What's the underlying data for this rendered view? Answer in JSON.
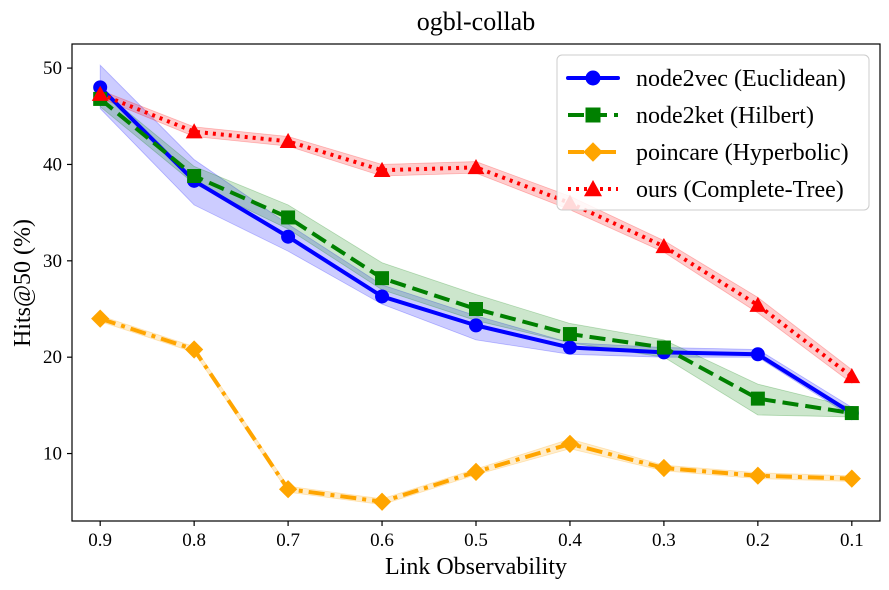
{
  "chart_data": {
    "type": "line",
    "title": "ogbl-collab",
    "xlabel": "Link Observability",
    "ylabel": "Hits@50 (%)",
    "categories": [
      "0.9",
      "0.8",
      "0.7",
      "0.6",
      "0.5",
      "0.4",
      "0.3",
      "0.2",
      "0.1"
    ],
    "x": [
      0.9,
      0.8,
      0.7,
      0.6,
      0.5,
      0.4,
      0.3,
      0.2,
      0.1
    ],
    "xlim": [
      0.93,
      0.07
    ],
    "ylim": [
      3,
      52.5
    ],
    "yticks": [
      10,
      20,
      30,
      40,
      50
    ],
    "grid": false,
    "legend_position": "top-right",
    "series": [
      {
        "name": "node2vec (Euclidean)",
        "color": "#0000ff",
        "linestyle": "solid",
        "marker": "circle",
        "values": [
          48.0,
          38.3,
          32.5,
          26.3,
          23.3,
          21.0,
          20.5,
          20.3,
          14.2
        ],
        "lower": [
          45.8,
          35.8,
          31.0,
          25.5,
          21.8,
          20.3,
          20.0,
          20.0,
          13.8
        ],
        "upper": [
          50.3,
          40.5,
          33.8,
          27.5,
          24.3,
          21.5,
          21.0,
          20.8,
          14.8
        ]
      },
      {
        "name": "node2ket (Hilbert)",
        "color": "#008000",
        "linestyle": "dashed",
        "marker": "square",
        "values": [
          46.8,
          38.8,
          34.5,
          28.2,
          25.0,
          22.4,
          21.0,
          15.7,
          14.2
        ],
        "lower": [
          46.0,
          38.0,
          33.3,
          27.0,
          23.8,
          21.5,
          20.0,
          14.0,
          13.8
        ],
        "upper": [
          47.8,
          39.8,
          35.8,
          29.8,
          26.5,
          23.5,
          21.8,
          17.2,
          14.8
        ]
      },
      {
        "name": "poincare (Hyperbolic)",
        "color": "#ffa500",
        "linestyle": "dashdot",
        "marker": "diamond",
        "values": [
          24.0,
          20.8,
          6.3,
          5.0,
          8.1,
          11.0,
          8.5,
          7.7,
          7.4
        ],
        "lower": [
          23.7,
          20.5,
          6.0,
          4.7,
          7.8,
          10.5,
          8.2,
          7.4,
          7.1
        ],
        "upper": [
          24.3,
          21.1,
          6.6,
          5.3,
          8.4,
          11.5,
          8.8,
          8.0,
          7.7
        ]
      },
      {
        "name": "ours (Complete-Tree)",
        "color": "#ff0000",
        "linestyle": "dotted",
        "marker": "triangle",
        "values": [
          47.3,
          43.4,
          42.4,
          39.4,
          39.7,
          36.0,
          31.5,
          25.4,
          18.0
        ],
        "lower": [
          46.9,
          42.9,
          41.9,
          38.8,
          39.1,
          35.3,
          30.9,
          24.6,
          17.3
        ],
        "upper": [
          47.7,
          43.9,
          42.9,
          40.0,
          40.3,
          36.7,
          32.1,
          26.2,
          18.7
        ]
      }
    ]
  }
}
